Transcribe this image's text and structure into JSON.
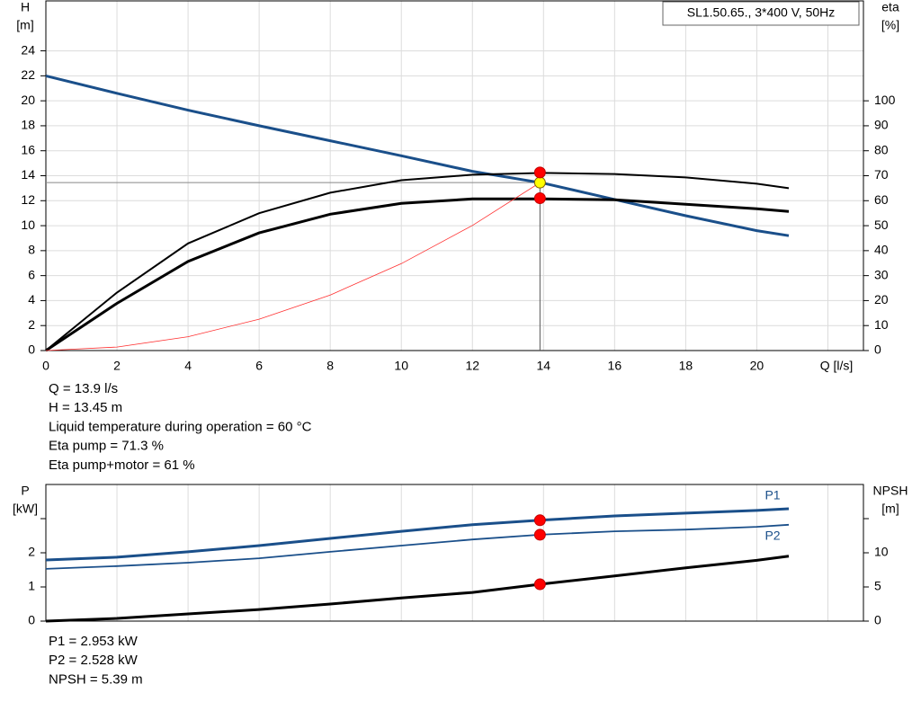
{
  "chart_data": [
    {
      "type": "line",
      "title": "SL1.50.65., 3*400 V, 50Hz",
      "xlabel": "Q [l/s]",
      "ylabel": "H",
      "yunit": "[m]",
      "y2label": "eta",
      "y2unit": "[%]",
      "xlim": [
        0,
        23
      ],
      "xticks": [
        0,
        2,
        4,
        6,
        8,
        10,
        12,
        14,
        16,
        18,
        20,
        {
          "value": 22,
          "label": null
        }
      ],
      "ylim": [
        0,
        28
      ],
      "yticks": [
        0,
        2,
        4,
        6,
        8,
        10,
        12,
        14,
        16,
        18,
        20,
        22,
        24
      ],
      "y2lim": [
        0,
        140
      ],
      "y2ticks": [
        0,
        10,
        20,
        30,
        40,
        50,
        60,
        70,
        80,
        90,
        100
      ],
      "grid": true,
      "guides": true,
      "series": [
        {
          "color": "#1a4f8a",
          "linewidth": 3,
          "axis": "y",
          "x": [
            0,
            2,
            4,
            6,
            8,
            10,
            12,
            14,
            16,
            18,
            20,
            20.9
          ],
          "values": [
            22,
            20.6,
            19.25,
            18.0,
            16.8,
            15.6,
            14.35,
            13.4,
            12.1,
            10.8,
            9.6,
            9.2
          ]
        },
        {
          "color": "#000000",
          "linewidth": 2,
          "axis": "y2",
          "x": [
            0,
            2,
            4,
            6,
            8,
            10,
            12,
            14,
            16,
            18,
            20,
            20.9
          ],
          "values": [
            0,
            23.2,
            42.9,
            55,
            63.2,
            68.2,
            70.4,
            71.1,
            70.7,
            69.3,
            66.8,
            65
          ]
        },
        {
          "color": "#000000",
          "linewidth": 3,
          "axis": "y2",
          "x": [
            0,
            2,
            4,
            6,
            8,
            10,
            12,
            14,
            16,
            18,
            20,
            20.9
          ],
          "values": [
            0,
            18.9,
            35.7,
            47.1,
            54.6,
            58.9,
            60.7,
            60.7,
            60.4,
            58.6,
            56.8,
            55.7
          ]
        },
        {
          "color": "#ff3030",
          "linewidth": 0.8,
          "axis": "y",
          "x": [
            0,
            2,
            4,
            6,
            8,
            10,
            12,
            13.9
          ],
          "values": [
            0,
            0.28,
            1.11,
            2.51,
            4.45,
            6.96,
            10.02,
            13.45
          ]
        }
      ],
      "markers": [
        {
          "x": 13.9,
          "y": 13.45,
          "axis": "y",
          "color": "#ffff00"
        },
        {
          "x": 13.9,
          "y": 71.3,
          "axis": "y2",
          "color": "#ff0000"
        },
        {
          "x": 13.9,
          "y": 61,
          "axis": "y2",
          "color": "#ff0000"
        }
      ],
      "notes": [
        "Q = 13.9 l/s",
        "H = 13.45 m",
        "Liquid temperature during operation = 60 °C",
        "Eta pump = 71.3 %",
        "Eta pump+motor = 61 %"
      ]
    },
    {
      "type": "line",
      "ylabel": "P",
      "yunit": "[kW]",
      "y2label": "NPSH",
      "y2unit": "[m]",
      "xlim": [
        0,
        23
      ],
      "xticks": [
        {
          "value": 0,
          "label": null
        },
        {
          "value": 2,
          "label": null
        },
        {
          "value": 4,
          "label": null
        },
        {
          "value": 6,
          "label": null
        },
        {
          "value": 8,
          "label": null
        },
        {
          "value": 10,
          "label": null
        },
        {
          "value": 12,
          "label": null
        },
        {
          "value": 14,
          "label": null
        },
        {
          "value": 16,
          "label": null
        },
        {
          "value": 18,
          "label": null
        },
        {
          "value": 20,
          "label": null
        },
        {
          "value": 22,
          "label": null
        }
      ],
      "ylim": [
        0,
        4
      ],
      "yticks": [
        0,
        1,
        2,
        {
          "value": 3,
          "label": null
        }
      ],
      "y2lim": [
        0,
        20
      ],
      "y2ticks": [
        0,
        5,
        10,
        {
          "value": 15,
          "label": null
        }
      ],
      "grid": true,
      "series": [
        {
          "name": "P1",
          "color": "#1a4f8a",
          "linewidth": 3,
          "axis": "y",
          "x": [
            0,
            2,
            4,
            6,
            8,
            10,
            12,
            13.9,
            16,
            18,
            20,
            20.9
          ],
          "values": [
            1.79,
            1.87,
            2.03,
            2.21,
            2.42,
            2.63,
            2.82,
            2.953,
            3.08,
            3.16,
            3.24,
            3.29
          ]
        },
        {
          "name": "P2",
          "color": "#1a4f8a",
          "linewidth": 1.8,
          "axis": "y",
          "x": [
            0,
            2,
            4,
            6,
            8,
            10,
            12,
            13.9,
            16,
            18,
            20,
            20.9
          ],
          "values": [
            1.53,
            1.61,
            1.71,
            1.84,
            2.03,
            2.21,
            2.39,
            2.528,
            2.63,
            2.68,
            2.76,
            2.82
          ]
        },
        {
          "color": "#000000",
          "linewidth": 3,
          "axis": "y2",
          "x": [
            0,
            2,
            4,
            6,
            8,
            10,
            12,
            13.9,
            16,
            18,
            20,
            20.9
          ],
          "values": [
            0,
            0.4,
            1.05,
            1.7,
            2.5,
            3.4,
            4.2,
            5.39,
            6.6,
            7.8,
            8.9,
            9.5
          ]
        }
      ],
      "markers": [
        {
          "x": 13.9,
          "y": 2.953,
          "axis": "y",
          "color": "#ff0000"
        },
        {
          "x": 13.9,
          "y": 2.528,
          "axis": "y",
          "color": "#ff0000"
        },
        {
          "x": 13.9,
          "y": 5.39,
          "axis": "y2",
          "color": "#ff0000"
        }
      ],
      "notes": [
        "P1 = 2.953 kW",
        "P2 = 2.528 kW",
        "NPSH = 5.39 m"
      ]
    }
  ]
}
